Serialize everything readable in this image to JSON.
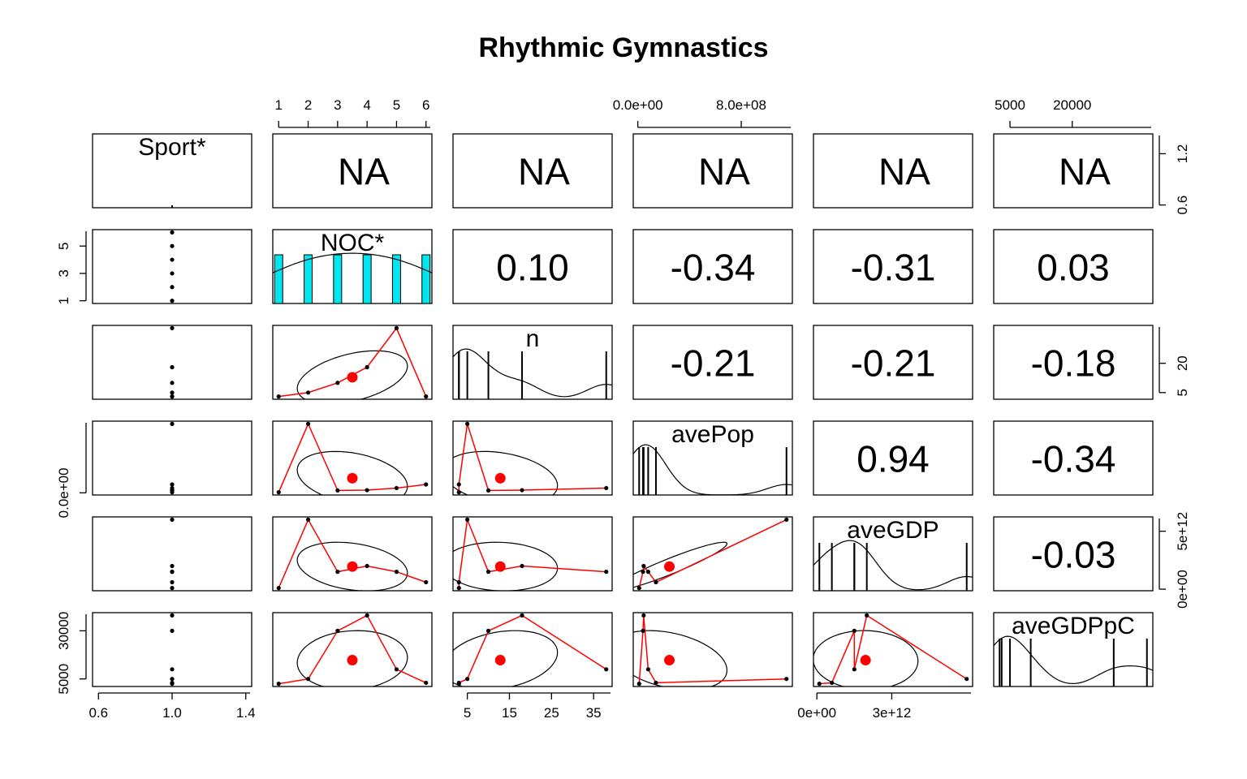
{
  "chart_data": {
    "type": "scatter",
    "title": "Rhythmic Gymnastics",
    "variables": [
      "Sport*",
      "NOC*",
      "n",
      "avePop",
      "aveGDP",
      "aveGDPpC"
    ],
    "correlations": [
      {
        "row": 0,
        "col": 1,
        "text": "NA"
      },
      {
        "row": 0,
        "col": 2,
        "text": "NA"
      },
      {
        "row": 0,
        "col": 3,
        "text": "NA"
      },
      {
        "row": 0,
        "col": 4,
        "text": "NA"
      },
      {
        "row": 0,
        "col": 5,
        "text": "NA"
      },
      {
        "row": 1,
        "col": 2,
        "text": "0.10"
      },
      {
        "row": 1,
        "col": 3,
        "text": "-0.34"
      },
      {
        "row": 1,
        "col": 4,
        "text": "-0.31"
      },
      {
        "row": 1,
        "col": 5,
        "text": "0.03"
      },
      {
        "row": 2,
        "col": 3,
        "text": "-0.21"
      },
      {
        "row": 2,
        "col": 4,
        "text": "-0.21"
      },
      {
        "row": 2,
        "col": 5,
        "text": "-0.18"
      },
      {
        "row": 3,
        "col": 4,
        "text": "0.94"
      },
      {
        "row": 3,
        "col": 5,
        "text": "-0.34"
      },
      {
        "row": 4,
        "col": 5,
        "text": "-0.03"
      }
    ],
    "axes": {
      "top": [
        {
          "col": 1,
          "ticks": [
            {
              "v": 1,
              "label": "1"
            },
            {
              "v": 2,
              "label": "2"
            },
            {
              "v": 3,
              "label": "3"
            },
            {
              "v": 4,
              "label": "4"
            },
            {
              "v": 5,
              "label": "5"
            },
            {
              "v": 6,
              "label": "6"
            }
          ]
        },
        {
          "col": 3,
          "ticks": [
            {
              "v": 0,
              "label": "0.0e+00"
            },
            {
              "v": 800000000,
              "label": "8.0e+08"
            }
          ]
        },
        {
          "col": 5,
          "ticks": [
            {
              "v": 5000,
              "label": "5000"
            },
            {
              "v": 20000,
              "label": "20000"
            }
          ]
        }
      ],
      "bottom": [
        {
          "col": 0,
          "ticks": [
            {
              "v": 0.6,
              "label": "0.6"
            },
            {
              "v": 1.0,
              "label": "1.0"
            },
            {
              "v": 1.4,
              "label": "1.4"
            }
          ]
        },
        {
          "col": 2,
          "ticks": [
            {
              "v": 5,
              "label": "5"
            },
            {
              "v": 15,
              "label": "15"
            },
            {
              "v": 25,
              "label": "25"
            },
            {
              "v": 35,
              "label": "35"
            }
          ]
        },
        {
          "col": 4,
          "ticks": [
            {
              "v": 0,
              "label": "0e+00"
            },
            {
              "v": 3000000000000,
              "label": "3e+12"
            }
          ]
        }
      ],
      "left": [
        {
          "row": 1,
          "ticks": [
            {
              "v": 1,
              "label": "1"
            },
            {
              "v": 3,
              "label": "3"
            },
            {
              "v": 5,
              "label": "5"
            }
          ]
        },
        {
          "row": 3,
          "ticks": [
            {
              "v": 0,
              "label": "0.0e+00"
            }
          ]
        },
        {
          "row": 5,
          "ticks": [
            {
              "v": 5000,
              "label": "5000"
            },
            {
              "v": 30000,
              "label": "30000"
            }
          ]
        }
      ],
      "right": [
        {
          "row": 0,
          "ticks": [
            {
              "v": 0.6,
              "label": "0.6"
            },
            {
              "v": 1.2,
              "label": "1.2"
            }
          ]
        },
        {
          "row": 2,
          "ticks": [
            {
              "v": 5,
              "label": "5"
            },
            {
              "v": 20,
              "label": "20"
            }
          ]
        },
        {
          "row": 4,
          "ticks": [
            {
              "v": 0,
              "label": "0e+00"
            },
            {
              "v": 5000000000000,
              "label": "5e+12"
            }
          ]
        }
      ]
    },
    "observations": [
      {
        "Sport": 1,
        "NOC": 1,
        "n": 3,
        "avePop": 10000000,
        "aveGDP": 100000000000,
        "aveGDPpC": 2500
      },
      {
        "Sport": 1,
        "NOC": 2,
        "n": 5,
        "avePop": 1150000000,
        "aveGDP": 6000000000000,
        "aveGDPpC": 5000
      },
      {
        "Sport": 1,
        "NOC": 3,
        "n": 10,
        "avePop": 40000000,
        "aveGDP": 1500000000000,
        "aveGDPpC": 30000
      },
      {
        "Sport": 1,
        "NOC": 4,
        "n": 18,
        "avePop": 45000000,
        "aveGDP": 2000000000000,
        "aveGDPpC": 38000
      },
      {
        "Sport": 1,
        "NOC": 5,
        "n": 38,
        "avePop": 80000000,
        "aveGDP": 1500000000000,
        "aveGDPpC": 10000
      },
      {
        "Sport": 1,
        "NOC": 6,
        "n": 3,
        "avePop": 140000000,
        "aveGDP": 600000000000,
        "aveGDPpC": 3000
      }
    ]
  }
}
